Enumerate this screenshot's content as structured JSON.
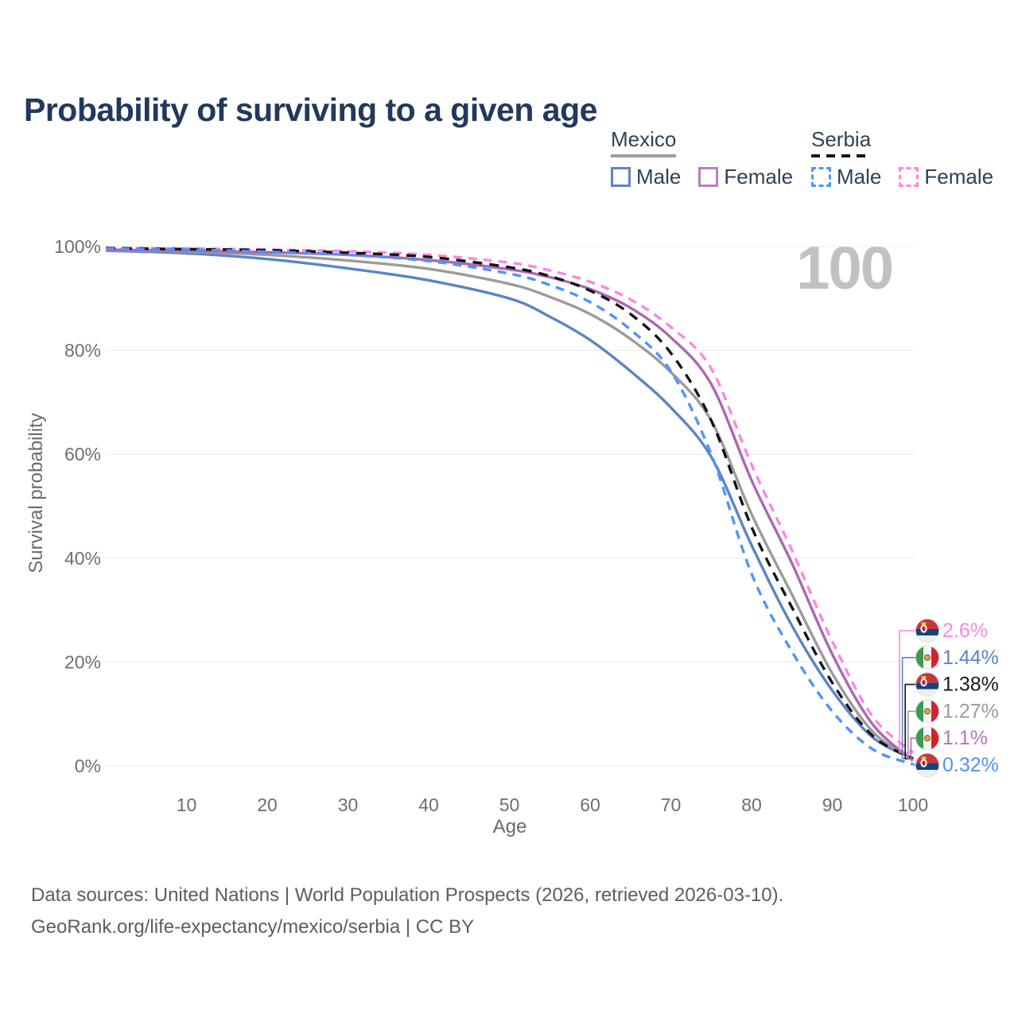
{
  "title": "Probability of surviving to a given age",
  "watermark_age": "100",
  "legend": {
    "groups": [
      {
        "country": "Mexico",
        "line_style": "solid",
        "underline_color": "#9e9e9e",
        "items": [
          {
            "label": "Male",
            "color": "#5b84c4"
          },
          {
            "label": "Female",
            "color": "#bf7cc2"
          }
        ]
      },
      {
        "country": "Serbia",
        "line_style": "dashed",
        "underline_color": "#141414",
        "items": [
          {
            "label": "Male",
            "color": "#4d94ff"
          },
          {
            "label": "Female",
            "color": "#ff85e3"
          }
        ]
      }
    ]
  },
  "chart_data": {
    "type": "line",
    "title": "Probability of surviving to a given age",
    "xlabel": "Age",
    "ylabel": "Survival probability",
    "xlim": [
      0,
      100
    ],
    "ylim": [
      0,
      100
    ],
    "grid": true,
    "legend_position": "top-right",
    "x_ticks": [
      10,
      20,
      30,
      40,
      50,
      60,
      70,
      80,
      90,
      100
    ],
    "y_ticks": [
      0,
      20,
      40,
      60,
      80,
      100
    ],
    "y_tick_suffix": "%",
    "x": [
      0,
      10,
      20,
      30,
      40,
      50,
      55,
      60,
      65,
      70,
      75,
      80,
      85,
      90,
      95,
      100
    ],
    "series": [
      {
        "name": "Serbia Female",
        "country": "Serbia",
        "sex": "Female",
        "style": "dashed",
        "color": "#ff85e3",
        "label_color": "#ff85e3",
        "flag": "serbia",
        "end_label": "2.6%",
        "values": [
          99.7,
          99.6,
          99.4,
          99.1,
          98.4,
          96.9,
          95.4,
          93.2,
          89.8,
          84.5,
          76.5,
          58.0,
          41.5,
          24.0,
          9.5,
          2.6
        ]
      },
      {
        "name": "Mexico Male",
        "country": "Mexico",
        "sex": "Male",
        "style": "solid",
        "color": "#5b84c4",
        "label_color": "#5b84c4",
        "flag": "mexico",
        "end_label": "1.44%",
        "values": [
          99.2,
          98.7,
          97.6,
          95.8,
          93.5,
          90.0,
          86.5,
          82.0,
          76.0,
          69.0,
          59.5,
          42.5,
          27.0,
          14.5,
          5.5,
          1.44
        ]
      },
      {
        "name": "Serbia",
        "country": "Serbia",
        "sex": "Both sexes",
        "style": "dashed",
        "color": "#141414",
        "label_color": "#1a1a1a",
        "flag": "serbia",
        "end_label": "1.38%",
        "values": [
          99.7,
          99.5,
          99.3,
          98.8,
          98.0,
          96.0,
          94.3,
          91.5,
          87.0,
          79.5,
          66.5,
          46.0,
          30.5,
          16.0,
          5.8,
          1.38
        ]
      },
      {
        "name": "Mexico",
        "country": "Mexico",
        "sex": "Both sexes",
        "style": "solid",
        "color": "#9b9b9b",
        "label_color": "#9b9b9b",
        "flag": "mexico",
        "end_label": "1.27%",
        "values": [
          99.3,
          99.0,
          98.4,
          97.3,
          95.7,
          92.8,
          90.3,
          87.0,
          82.2,
          75.8,
          66.5,
          48.5,
          33.0,
          17.8,
          6.6,
          1.27
        ]
      },
      {
        "name": "Mexico Female",
        "country": "Mexico",
        "sex": "Female",
        "style": "solid",
        "color": "#ad67b2",
        "label_color": "#b873bd",
        "flag": "mexico",
        "end_label": "1.1%",
        "values": [
          99.4,
          99.2,
          98.9,
          98.4,
          97.4,
          95.6,
          94.1,
          91.8,
          88.2,
          82.5,
          73.5,
          55.0,
          39.0,
          21.5,
          8.0,
          1.1
        ]
      },
      {
        "name": "Serbia Male",
        "country": "Serbia",
        "sex": "Male",
        "style": "dashed",
        "color": "#4d94ff",
        "label_color": "#4d94ff",
        "flag": "serbia",
        "end_label": "0.32%",
        "values": [
          99.6,
          99.4,
          99.0,
          98.4,
          97.2,
          94.8,
          92.6,
          89.3,
          84.0,
          76.0,
          60.0,
          37.0,
          22.0,
          10.5,
          3.2,
          0.32
        ]
      }
    ]
  },
  "footer": {
    "line1": "Data sources: United Nations | World Population Prospects (2026, retrieved 2026-03-10).",
    "line2": "GeoRank.org/life-expectancy/mexico/serbia | CC BY"
  }
}
